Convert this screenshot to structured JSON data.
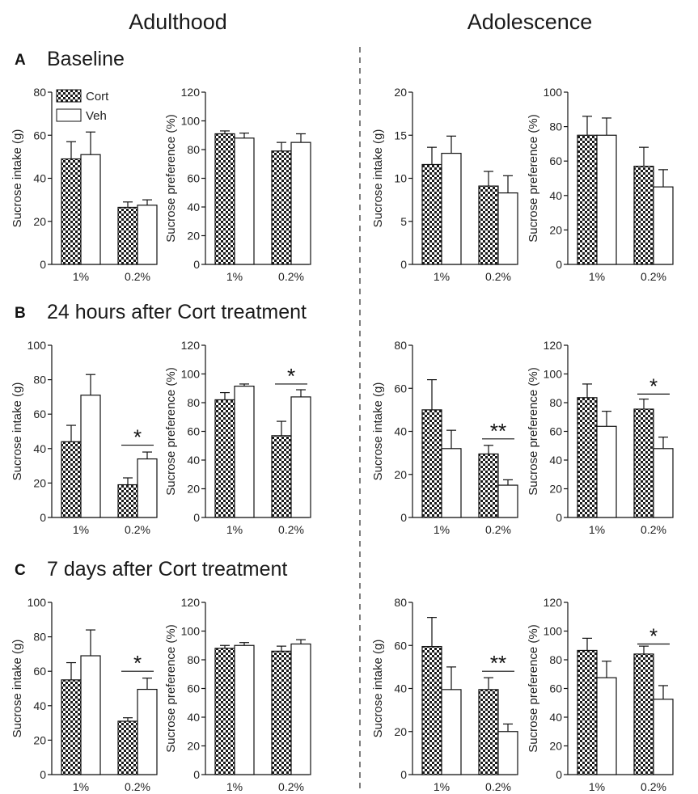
{
  "columns": [
    "Adulthood",
    "Adolescence"
  ],
  "rows": [
    {
      "letter": "A",
      "title": "Baseline"
    },
    {
      "letter": "B",
      "title": "24 hours after Cort treatment"
    },
    {
      "letter": "C",
      "title": "7 days after Cort treatment"
    }
  ],
  "legend": [
    {
      "label": "Cort",
      "pattern": "checker"
    },
    {
      "label": "Veh",
      "pattern": "open"
    }
  ],
  "colors": {
    "ink": "#111111",
    "divider": "#555555",
    "checker_dark": "#1a1a1a"
  },
  "chart_data": [
    {
      "type": "bar",
      "panel": "A",
      "column": "Adulthood",
      "categories": [
        "1%",
        "0.2%"
      ],
      "ylabel": "Sucrose intake (g)",
      "ylim": [
        0,
        80
      ],
      "yticks": [
        0,
        20,
        40,
        60,
        80
      ],
      "series": [
        {
          "name": "Cort",
          "values": [
            49,
            26.5
          ],
          "errors": [
            8,
            2.5
          ]
        },
        {
          "name": "Veh",
          "values": [
            51,
            27.5
          ],
          "errors": [
            10.5,
            2.5
          ]
        }
      ],
      "sig": []
    },
    {
      "type": "bar",
      "panel": "A",
      "column": "Adulthood",
      "categories": [
        "1%",
        "0.2%"
      ],
      "ylabel": "Sucrose preference (%)",
      "ylim": [
        0,
        120
      ],
      "yticks": [
        0,
        20,
        40,
        60,
        80,
        100,
        120
      ],
      "series": [
        {
          "name": "Cort",
          "values": [
            91,
            79
          ],
          "errors": [
            2,
            6
          ]
        },
        {
          "name": "Veh",
          "values": [
            88,
            85
          ],
          "errors": [
            3.5,
            6
          ]
        }
      ],
      "sig": []
    },
    {
      "type": "bar",
      "panel": "A",
      "column": "Adolescence",
      "categories": [
        "1%",
        "0.2%"
      ],
      "ylabel": "Sucrose intake (g)",
      "ylim": [
        0,
        20
      ],
      "yticks": [
        0,
        5,
        10,
        15,
        20
      ],
      "series": [
        {
          "name": "Cort",
          "values": [
            11.6,
            9.1
          ],
          "errors": [
            2,
            1.7
          ]
        },
        {
          "name": "Veh",
          "values": [
            12.9,
            8.3
          ],
          "errors": [
            2,
            2
          ]
        }
      ],
      "sig": []
    },
    {
      "type": "bar",
      "panel": "A",
      "column": "Adolescence",
      "categories": [
        "1%",
        "0.2%"
      ],
      "ylabel": "Sucrose preference (%)",
      "ylim": [
        0,
        100
      ],
      "yticks": [
        0,
        20,
        40,
        60,
        80,
        100
      ],
      "series": [
        {
          "name": "Cort",
          "values": [
            75,
            57
          ],
          "errors": [
            11,
            11
          ]
        },
        {
          "name": "Veh",
          "values": [
            75,
            45
          ],
          "errors": [
            10,
            10
          ]
        }
      ],
      "sig": []
    },
    {
      "type": "bar",
      "panel": "B",
      "column": "Adulthood",
      "categories": [
        "1%",
        "0.2%"
      ],
      "ylabel": "Sucrose intake (g)",
      "ylim": [
        0,
        100
      ],
      "yticks": [
        0,
        20,
        40,
        60,
        80,
        100
      ],
      "series": [
        {
          "name": "Cort",
          "values": [
            44,
            19
          ],
          "errors": [
            9.5,
            4
          ]
        },
        {
          "name": "Veh",
          "values": [
            71,
            34
          ],
          "errors": [
            12,
            4
          ]
        }
      ],
      "sig": [
        {
          "category": 1,
          "label": "*",
          "y": 42
        }
      ]
    },
    {
      "type": "bar",
      "panel": "B",
      "column": "Adulthood",
      "categories": [
        "1%",
        "0.2%"
      ],
      "ylabel": "Sucrose preference (%)",
      "ylim": [
        0,
        120
      ],
      "yticks": [
        0,
        20,
        40,
        60,
        80,
        100,
        120
      ],
      "series": [
        {
          "name": "Cort",
          "values": [
            82,
            57
          ],
          "errors": [
            5,
            10
          ]
        },
        {
          "name": "Veh",
          "values": [
            91.5,
            84
          ],
          "errors": [
            1.5,
            5
          ]
        }
      ],
      "sig": [
        {
          "category": 1,
          "label": "*",
          "y": 93
        }
      ]
    },
    {
      "type": "bar",
      "panel": "B",
      "column": "Adolescence",
      "categories": [
        "1%",
        "0.2%"
      ],
      "ylabel": "Sucrose intake (g)",
      "ylim": [
        0,
        80
      ],
      "yticks": [
        0,
        20,
        40,
        60,
        80
      ],
      "series": [
        {
          "name": "Cort",
          "values": [
            50,
            29.5
          ],
          "errors": [
            14,
            4
          ]
        },
        {
          "name": "Veh",
          "values": [
            32,
            15
          ],
          "errors": [
            8.5,
            2.5
          ]
        }
      ],
      "sig": [
        {
          "category": 1,
          "label": "**",
          "y": 36.5
        }
      ]
    },
    {
      "type": "bar",
      "panel": "B",
      "column": "Adolescence",
      "categories": [
        "1%",
        "0.2%"
      ],
      "ylabel": "Sucrose preference (%)",
      "ylim": [
        0,
        120
      ],
      "yticks": [
        0,
        20,
        40,
        60,
        80,
        100,
        120
      ],
      "series": [
        {
          "name": "Cort",
          "values": [
            83.5,
            75.5
          ],
          "errors": [
            9.5,
            7
          ]
        },
        {
          "name": "Veh",
          "values": [
            63.5,
            48
          ],
          "errors": [
            10.5,
            8
          ]
        }
      ],
      "sig": [
        {
          "category": 1,
          "label": "*",
          "y": 86
        }
      ]
    },
    {
      "type": "bar",
      "panel": "C",
      "column": "Adulthood",
      "categories": [
        "1%",
        "0.2%"
      ],
      "ylabel": "Sucrose intake (g)",
      "ylim": [
        0,
        100
      ],
      "yticks": [
        0,
        20,
        40,
        60,
        80,
        100
      ],
      "series": [
        {
          "name": "Cort",
          "values": [
            55,
            31
          ],
          "errors": [
            10,
            2
          ]
        },
        {
          "name": "Veh",
          "values": [
            69,
            49.5
          ],
          "errors": [
            15,
            6.5
          ]
        }
      ],
      "sig": [
        {
          "category": 1,
          "label": "*",
          "y": 60
        }
      ]
    },
    {
      "type": "bar",
      "panel": "C",
      "column": "Adulthood",
      "categories": [
        "1%",
        "0.2%"
      ],
      "ylabel": "Sucrose preference (%)",
      "ylim": [
        0,
        120
      ],
      "yticks": [
        0,
        20,
        40,
        60,
        80,
        100,
        120
      ],
      "series": [
        {
          "name": "Cort",
          "values": [
            88,
            86
          ],
          "errors": [
            2,
            3.5
          ]
        },
        {
          "name": "Veh",
          "values": [
            90,
            91
          ],
          "errors": [
            2,
            3
          ]
        }
      ],
      "sig": []
    },
    {
      "type": "bar",
      "panel": "C",
      "column": "Adolescence",
      "categories": [
        "1%",
        "0.2%"
      ],
      "ylabel": "Sucrose intake (g)",
      "ylim": [
        0,
        80
      ],
      "yticks": [
        0,
        20,
        40,
        60,
        80
      ],
      "series": [
        {
          "name": "Cort",
          "values": [
            59.5,
            39.5
          ],
          "errors": [
            13.5,
            5.5
          ]
        },
        {
          "name": "Veh",
          "values": [
            39.5,
            20
          ],
          "errors": [
            10.5,
            3.5
          ]
        }
      ],
      "sig": [
        {
          "category": 1,
          "label": "**",
          "y": 48
        }
      ]
    },
    {
      "type": "bar",
      "panel": "C",
      "column": "Adolescence",
      "categories": [
        "1%",
        "0.2%"
      ],
      "ylabel": "Sucrose preference (%)",
      "ylim": [
        0,
        120
      ],
      "yticks": [
        0,
        20,
        40,
        60,
        80,
        100,
        120
      ],
      "series": [
        {
          "name": "Cort",
          "values": [
            86.5,
            84
          ],
          "errors": [
            8.5,
            5.5
          ]
        },
        {
          "name": "Veh",
          "values": [
            67.5,
            52.5
          ],
          "errors": [
            11.5,
            9.5
          ]
        }
      ],
      "sig": [
        {
          "category": 1,
          "label": "*",
          "y": 91
        }
      ]
    }
  ]
}
